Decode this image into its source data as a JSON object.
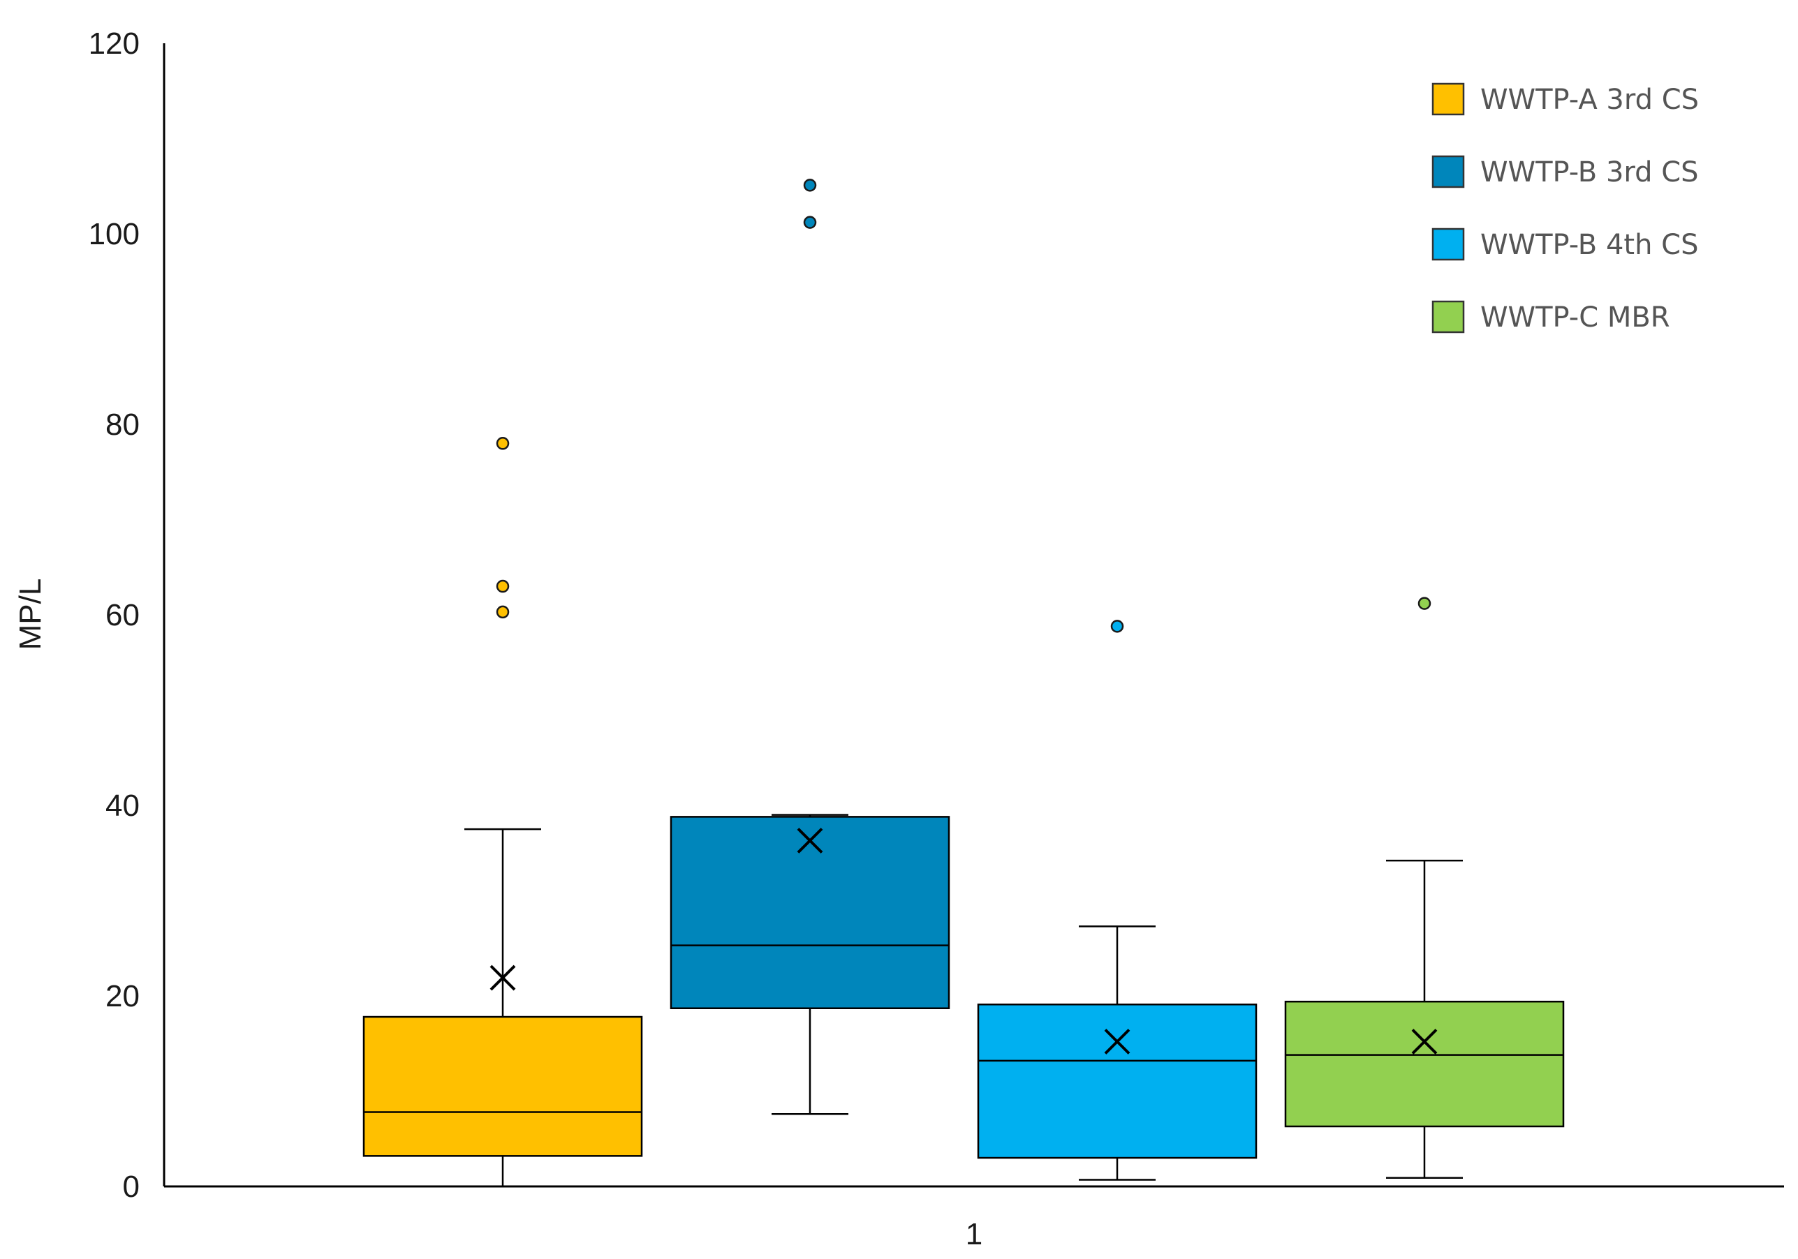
{
  "chart_data": {
    "type": "box",
    "ylabel": "MP/L",
    "xlabel": "",
    "categories": [
      "1"
    ],
    "ylim": [
      0,
      120
    ],
    "yticks": [
      0,
      20,
      40,
      60,
      80,
      100,
      120
    ],
    "grid": false,
    "legend_position": "top-right",
    "series": [
      {
        "name": "WWTP-A 3rd CS",
        "color": "#FFC000",
        "min": 0,
        "q1": 3.2,
        "median": 7.8,
        "q3": 17.8,
        "max": 37.5,
        "mean": 21.9,
        "outliers": [
          78.0,
          63.0,
          60.3
        ]
      },
      {
        "name": "WWTP-B 3rd CS",
        "color": "#0086BB",
        "min": 7.6,
        "q1": 18.7,
        "median": 25.3,
        "q3": 38.8,
        "max": 39.0,
        "mean": 36.3,
        "outliers": [
          105.1,
          101.2
        ]
      },
      {
        "name": "WWTP-B 4th CS",
        "color": "#00B0F0",
        "min": 0.7,
        "q1": 3.0,
        "median": 13.2,
        "q3": 19.1,
        "max": 27.3,
        "mean": 15.2,
        "outliers": [
          58.8
        ]
      },
      {
        "name": "WWTP-C MBR",
        "color": "#92D050",
        "min": 0.9,
        "q1": 6.3,
        "median": 13.8,
        "q3": 19.4,
        "max": 34.2,
        "mean": 15.2,
        "outliers": [
          61.2
        ]
      }
    ]
  }
}
